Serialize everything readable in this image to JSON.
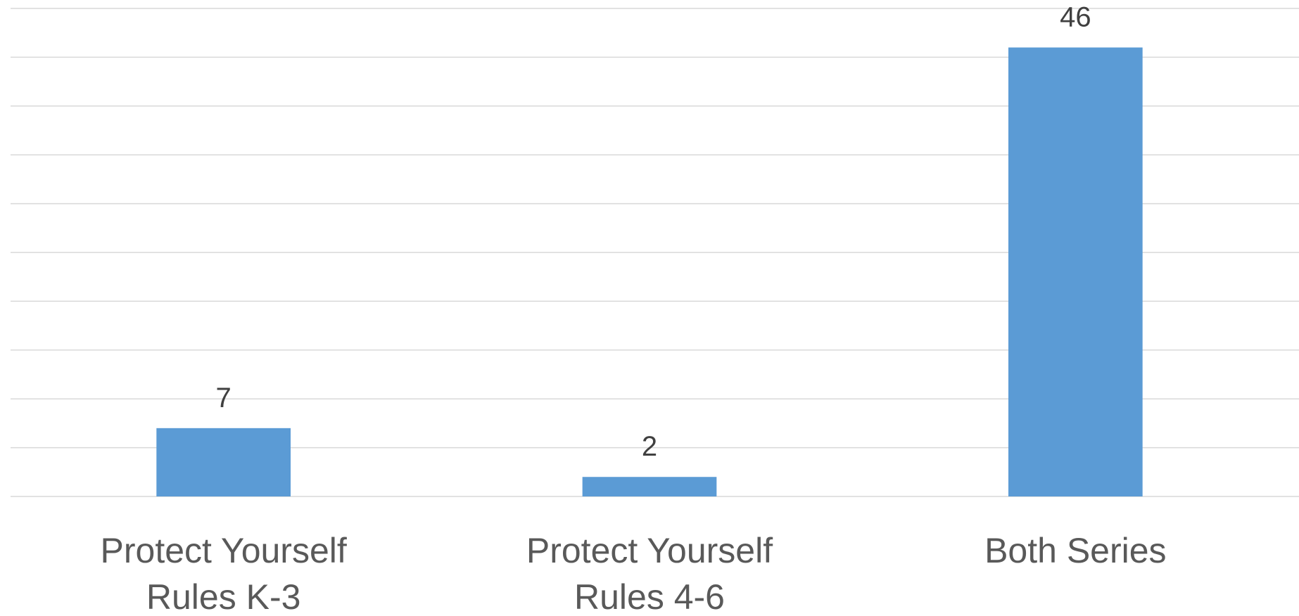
{
  "chart_data": {
    "type": "bar",
    "categories": [
      [
        "Protect Yourself",
        "Rules K-3"
      ],
      [
        "Protect Yourself",
        "Rules 4-6"
      ],
      [
        "Both Series"
      ]
    ],
    "series": [
      {
        "values": [
          7,
          2,
          46
        ],
        "color": "#5b9bd5"
      }
    ],
    "data_labels": [
      "7",
      "2",
      "46"
    ],
    "ylim": [
      0,
      50
    ],
    "gridlines": true,
    "title": "",
    "xlabel": "",
    "ylabel": ""
  }
}
